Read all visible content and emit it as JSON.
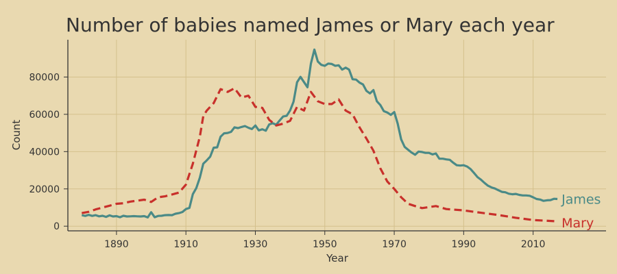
{
  "chart_data": {
    "type": "line",
    "title": "Number of babies named James or Mary each year",
    "xlabel": "Year",
    "ylabel": "Count",
    "xlim": [
      1876,
      2031
    ],
    "ylim": [
      -2500,
      100000
    ],
    "grid": true,
    "background": "#e9d9b0",
    "gridline_color": "#d4c08c",
    "text_color": "#333333",
    "x_ticks": [
      1890,
      1910,
      1930,
      1950,
      1970,
      1990,
      2010
    ],
    "y_ticks": [
      0,
      20000,
      40000,
      60000,
      80000
    ],
    "series": [
      {
        "name": "James",
        "color": "#4a8a87",
        "style": "solid",
        "x": [
          1880,
          1881,
          1882,
          1883,
          1884,
          1885,
          1886,
          1887,
          1888,
          1889,
          1890,
          1891,
          1892,
          1893,
          1894,
          1895,
          1896,
          1897,
          1898,
          1899,
          1900,
          1901,
          1902,
          1903,
          1904,
          1905,
          1906,
          1907,
          1908,
          1909,
          1910,
          1911,
          1912,
          1913,
          1914,
          1915,
          1916,
          1917,
          1918,
          1919,
          1920,
          1921,
          1922,
          1923,
          1924,
          1925,
          1926,
          1927,
          1928,
          1929,
          1930,
          1931,
          1932,
          1933,
          1934,
          1935,
          1936,
          1937,
          1938,
          1939,
          1940,
          1941,
          1942,
          1943,
          1944,
          1945,
          1946,
          1947,
          1948,
          1949,
          1950,
          1951,
          1952,
          1953,
          1954,
          1955,
          1956,
          1957,
          1958,
          1959,
          1960,
          1961,
          1962,
          1963,
          1964,
          1965,
          1966,
          1967,
          1968,
          1969,
          1970,
          1971,
          1972,
          1973,
          1974,
          1975,
          1976,
          1977,
          1978,
          1979,
          1980,
          1981,
          1982,
          1983,
          1984,
          1985,
          1986,
          1987,
          1988,
          1989,
          1990,
          1991,
          1992,
          1993,
          1994,
          1995,
          1996,
          1997,
          1998,
          1999,
          2000,
          2001,
          2002,
          2003,
          2004,
          2005,
          2006,
          2007,
          2008,
          2009,
          2010,
          2011,
          2012,
          2013,
          2014,
          2015,
          2016,
          2017
        ],
        "values": [
          5900,
          5500,
          6100,
          5500,
          5900,
          5300,
          5600,
          5000,
          5800,
          5200,
          5400,
          4800,
          5600,
          5200,
          5300,
          5400,
          5300,
          5200,
          5400,
          4700,
          7500,
          4800,
          5500,
          5600,
          5900,
          6000,
          5900,
          6700,
          7000,
          7600,
          9200,
          9800,
          17200,
          20500,
          26000,
          33500,
          35300,
          37300,
          42100,
          42300,
          48000,
          49800,
          50000,
          50600,
          53000,
          52600,
          53200,
          53700,
          52800,
          52100,
          54000,
          51400,
          52000,
          51200,
          54600,
          55200,
          54400,
          56700,
          58800,
          59200,
          62000,
          66800,
          77200,
          80100,
          77300,
          74500,
          87200,
          94700,
          88300,
          86500,
          86000,
          87200,
          87000,
          86000,
          86300,
          84000,
          85000,
          84000,
          78800,
          78600,
          77000,
          76000,
          72600,
          71200,
          73000,
          67000,
          65000,
          61700,
          61000,
          59700,
          61200,
          55000,
          46500,
          42500,
          41000,
          39500,
          38300,
          40000,
          39800,
          39300,
          39300,
          38500,
          39000,
          36200,
          36200,
          35800,
          35600,
          34000,
          32700,
          32500,
          32700,
          32000,
          30600,
          28500,
          26300,
          24900,
          23200,
          21700,
          20800,
          20200,
          19300,
          18400,
          18200,
          17400,
          17100,
          17300,
          16800,
          16500,
          16500,
          16300,
          15500,
          14600,
          14300,
          13600,
          13900,
          14000,
          14700,
          14600
        ]
      },
      {
        "name": "Mary",
        "color": "#c8302b",
        "style": "dashed",
        "x": [
          1880,
          1882,
          1884,
          1886,
          1888,
          1890,
          1892,
          1894,
          1896,
          1898,
          1900,
          1902,
          1904,
          1906,
          1908,
          1910,
          1912,
          1914,
          1915,
          1916,
          1918,
          1920,
          1922,
          1924,
          1926,
          1928,
          1930,
          1932,
          1934,
          1936,
          1938,
          1940,
          1942,
          1944,
          1946,
          1948,
          1950,
          1952,
          1954,
          1956,
          1958,
          1960,
          1962,
          1964,
          1966,
          1968,
          1970,
          1972,
          1974,
          1976,
          1978,
          1980,
          1982,
          1985,
          1990,
          1995,
          2000,
          2005,
          2010,
          2017
        ],
        "values": [
          7000,
          7700,
          9000,
          10000,
          11000,
          12000,
          12300,
          13200,
          13700,
          14200,
          13000,
          15500,
          16000,
          17000,
          18000,
          22300,
          33500,
          48000,
          59000,
          62000,
          66000,
          73500,
          72000,
          74000,
          69000,
          70000,
          64000,
          63500,
          57000,
          54000,
          55000,
          56500,
          64000,
          62000,
          72000,
          67000,
          65500,
          65500,
          68000,
          62000,
          60000,
          53000,
          47000,
          40500,
          31000,
          24000,
          20000,
          15500,
          12000,
          10800,
          9700,
          10200,
          10800,
          9200,
          8500,
          7200,
          6000,
          4500,
          3300,
          2600
        ]
      }
    ]
  }
}
